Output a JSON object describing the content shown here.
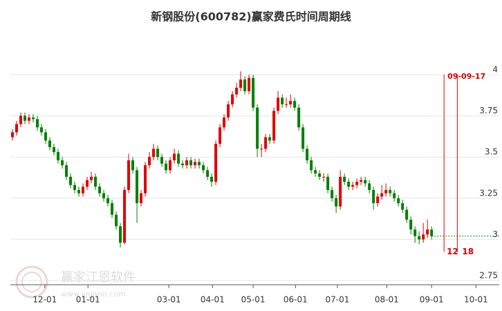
{
  "chart_data": {
    "type": "candlestick",
    "title": "新钢股份(600782)赢家费氏时间周期线",
    "up_color": "#e00000",
    "down_color": "#008000",
    "grid": true,
    "ylim": [
      2.725,
      4.285
    ],
    "yticks": [
      2.75,
      3,
      3.25,
      3.5,
      3.75,
      4
    ],
    "xlim": [
      0,
      117.8
    ],
    "xticks": [
      {
        "value": 8.3,
        "label": "12-01"
      },
      {
        "value": 18.7,
        "label": "01-01"
      },
      {
        "value": 38.2,
        "label": "03-01"
      },
      {
        "value": 48.7,
        "label": "04-01"
      },
      {
        "value": 58.5,
        "label": "05-01"
      },
      {
        "value": 68.7,
        "label": "06-01"
      },
      {
        "value": 78.8,
        "label": "07-01"
      },
      {
        "value": 90.7,
        "label": "08-01"
      },
      {
        "value": 101.5,
        "label": "09-01"
      },
      {
        "value": 112.2,
        "label": "10-01"
      }
    ],
    "candles": [
      [
        3.62,
        3.67,
        3.6,
        3.65
      ],
      [
        3.65,
        3.72,
        3.63,
        3.7
      ],
      [
        3.7,
        3.77,
        3.68,
        3.75
      ],
      [
        3.75,
        3.77,
        3.7,
        3.72
      ],
      [
        3.72,
        3.76,
        3.7,
        3.74
      ],
      [
        3.74,
        3.76,
        3.71,
        3.73
      ],
      [
        3.73,
        3.75,
        3.66,
        3.68
      ],
      [
        3.68,
        3.7,
        3.63,
        3.65
      ],
      [
        3.65,
        3.67,
        3.58,
        3.6
      ],
      [
        3.6,
        3.62,
        3.54,
        3.56
      ],
      [
        3.56,
        3.58,
        3.51,
        3.53
      ],
      [
        3.53,
        3.55,
        3.46,
        3.48
      ],
      [
        3.48,
        3.5,
        3.43,
        3.45
      ],
      [
        3.45,
        3.47,
        3.36,
        3.38
      ],
      [
        3.38,
        3.4,
        3.31,
        3.33
      ],
      [
        3.33,
        3.35,
        3.28,
        3.3
      ],
      [
        3.3,
        3.32,
        3.26,
        3.28
      ],
      [
        3.28,
        3.34,
        3.26,
        3.32
      ],
      [
        3.32,
        3.38,
        3.3,
        3.36
      ],
      [
        3.36,
        3.41,
        3.34,
        3.38
      ],
      [
        3.38,
        3.4,
        3.3,
        3.32
      ],
      [
        3.32,
        3.34,
        3.26,
        3.28
      ],
      [
        3.28,
        3.3,
        3.23,
        3.25
      ],
      [
        3.25,
        3.27,
        3.2,
        3.22
      ],
      [
        3.22,
        3.24,
        3.13,
        3.15
      ],
      [
        3.15,
        3.17,
        3.06,
        3.08
      ],
      [
        3.08,
        3.1,
        2.95,
        2.98
      ],
      [
        2.98,
        3.32,
        2.97,
        3.3
      ],
      [
        3.3,
        3.52,
        3.28,
        3.48
      ],
      [
        3.48,
        3.5,
        3.4,
        3.42
      ],
      [
        3.42,
        3.44,
        3.1,
        3.22
      ],
      [
        3.22,
        3.3,
        3.2,
        3.28
      ],
      [
        3.28,
        3.47,
        3.26,
        3.45
      ],
      [
        3.45,
        3.53,
        3.43,
        3.5
      ],
      [
        3.5,
        3.58,
        3.48,
        3.55
      ],
      [
        3.55,
        3.57,
        3.48,
        3.5
      ],
      [
        3.5,
        3.52,
        3.44,
        3.46
      ],
      [
        3.46,
        3.48,
        3.4,
        3.42
      ],
      [
        3.42,
        3.5,
        3.4,
        3.48
      ],
      [
        3.48,
        3.55,
        3.46,
        3.52
      ],
      [
        3.52,
        3.54,
        3.44,
        3.46
      ],
      [
        3.46,
        3.48,
        3.43,
        3.45
      ],
      [
        3.45,
        3.5,
        3.43,
        3.48
      ],
      [
        3.48,
        3.5,
        3.43,
        3.45
      ],
      [
        3.45,
        3.49,
        3.43,
        3.47
      ],
      [
        3.47,
        3.49,
        3.43,
        3.45
      ],
      [
        3.45,
        3.47,
        3.4,
        3.42
      ],
      [
        3.42,
        3.44,
        3.36,
        3.38
      ],
      [
        3.38,
        3.4,
        3.32,
        3.35
      ],
      [
        3.35,
        3.6,
        3.33,
        3.58
      ],
      [
        3.58,
        3.7,
        3.56,
        3.68
      ],
      [
        3.68,
        3.76,
        3.66,
        3.74
      ],
      [
        3.74,
        3.84,
        3.72,
        3.82
      ],
      [
        3.82,
        3.9,
        3.8,
        3.88
      ],
      [
        3.88,
        3.95,
        3.86,
        3.92
      ],
      [
        3.92,
        4.02,
        3.9,
        3.97
      ],
      [
        3.97,
        3.99,
        3.88,
        3.9
      ],
      [
        3.9,
        4.0,
        3.88,
        3.98
      ],
      [
        3.98,
        4.0,
        3.78,
        3.8
      ],
      [
        3.8,
        3.82,
        3.5,
        3.55
      ],
      [
        3.55,
        3.58,
        3.5,
        3.55
      ],
      [
        3.55,
        3.64,
        3.53,
        3.62
      ],
      [
        3.62,
        3.64,
        3.58,
        3.6
      ],
      [
        3.6,
        3.8,
        3.58,
        3.78
      ],
      [
        3.78,
        3.9,
        3.76,
        3.86
      ],
      [
        3.86,
        3.88,
        3.8,
        3.82
      ],
      [
        3.82,
        3.86,
        3.8,
        3.82
      ],
      [
        3.82,
        3.88,
        3.8,
        3.84
      ],
      [
        3.84,
        3.86,
        3.78,
        3.8
      ],
      [
        3.8,
        3.82,
        3.66,
        3.68
      ],
      [
        3.68,
        3.7,
        3.53,
        3.55
      ],
      [
        3.55,
        3.57,
        3.46,
        3.48
      ],
      [
        3.48,
        3.5,
        3.4,
        3.42
      ],
      [
        3.42,
        3.44,
        3.38,
        3.4
      ],
      [
        3.4,
        3.42,
        3.36,
        3.38
      ],
      [
        3.38,
        3.4,
        3.35,
        3.38
      ],
      [
        3.38,
        3.4,
        3.28,
        3.3
      ],
      [
        3.3,
        3.32,
        3.23,
        3.25
      ],
      [
        3.25,
        3.27,
        3.16,
        3.2
      ],
      [
        3.2,
        3.42,
        3.18,
        3.38
      ],
      [
        3.38,
        3.4,
        3.33,
        3.35
      ],
      [
        3.35,
        3.37,
        3.3,
        3.32
      ],
      [
        3.32,
        3.35,
        3.3,
        3.33
      ],
      [
        3.33,
        3.37,
        3.31,
        3.35
      ],
      [
        3.35,
        3.38,
        3.33,
        3.36
      ],
      [
        3.36,
        3.38,
        3.32,
        3.34
      ],
      [
        3.34,
        3.36,
        3.28,
        3.3
      ],
      [
        3.3,
        3.32,
        3.18,
        3.22
      ],
      [
        3.22,
        3.28,
        3.2,
        3.26
      ],
      [
        3.26,
        3.33,
        3.24,
        3.28
      ],
      [
        3.28,
        3.34,
        3.26,
        3.3
      ],
      [
        3.3,
        3.32,
        3.26,
        3.28
      ],
      [
        3.28,
        3.3,
        3.23,
        3.25
      ],
      [
        3.25,
        3.27,
        3.2,
        3.22
      ],
      [
        3.22,
        3.24,
        3.16,
        3.18
      ],
      [
        3.18,
        3.2,
        3.1,
        3.12
      ],
      [
        3.12,
        3.14,
        3.03,
        3.06
      ],
      [
        3.06,
        3.08,
        2.98,
        3.02
      ],
      [
        3.02,
        3.05,
        2.97,
        3.0
      ],
      [
        3.0,
        3.1,
        2.98,
        3.03
      ],
      [
        3.03,
        3.12,
        3.01,
        3.06
      ],
      [
        3.06,
        3.08,
        3.0,
        3.02
      ]
    ],
    "cycle_title": "09-09-17",
    "cycle_lines": [
      {
        "x": 104.5,
        "label": "12"
      },
      {
        "x": 107.7,
        "label": "18"
      }
    ],
    "watermark": {
      "name": "赢家江恩软件",
      "url": "www.yjgann.com"
    }
  }
}
